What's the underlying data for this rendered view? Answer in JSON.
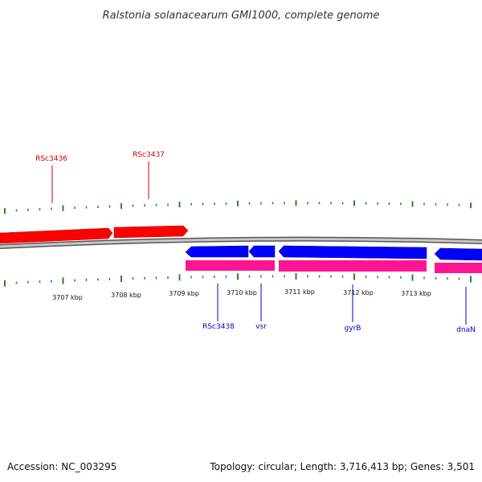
{
  "title": "Ralstonia solanacearum GMI1000, complete genome",
  "footer": {
    "accession": "Accession: NC_003295",
    "summary": "Topology: circular; Length: 3,716,413 bp; Genes: 3,501"
  },
  "colors": {
    "forward_gene": "#ff0000",
    "reverse_gene": "#0000ff",
    "cds": "#ff1493",
    "backbone": "#808080",
    "tick": "#228b22",
    "forward_label": "#cc0000",
    "reverse_label": "#0000cc"
  },
  "scale_labels": [
    "3707 kbp",
    "3708 kbp",
    "3709 kbp",
    "3710 kbp",
    "3711 kbp",
    "3712 kbp",
    "3713 kbp"
  ],
  "forward_genes": [
    {
      "label": "RSc3436"
    },
    {
      "label": "RSc3437"
    }
  ],
  "reverse_genes": [
    {
      "label": "RSc3438"
    },
    {
      "label": "vsr"
    },
    {
      "label": "gyrB"
    },
    {
      "label": "dnaN"
    }
  ]
}
